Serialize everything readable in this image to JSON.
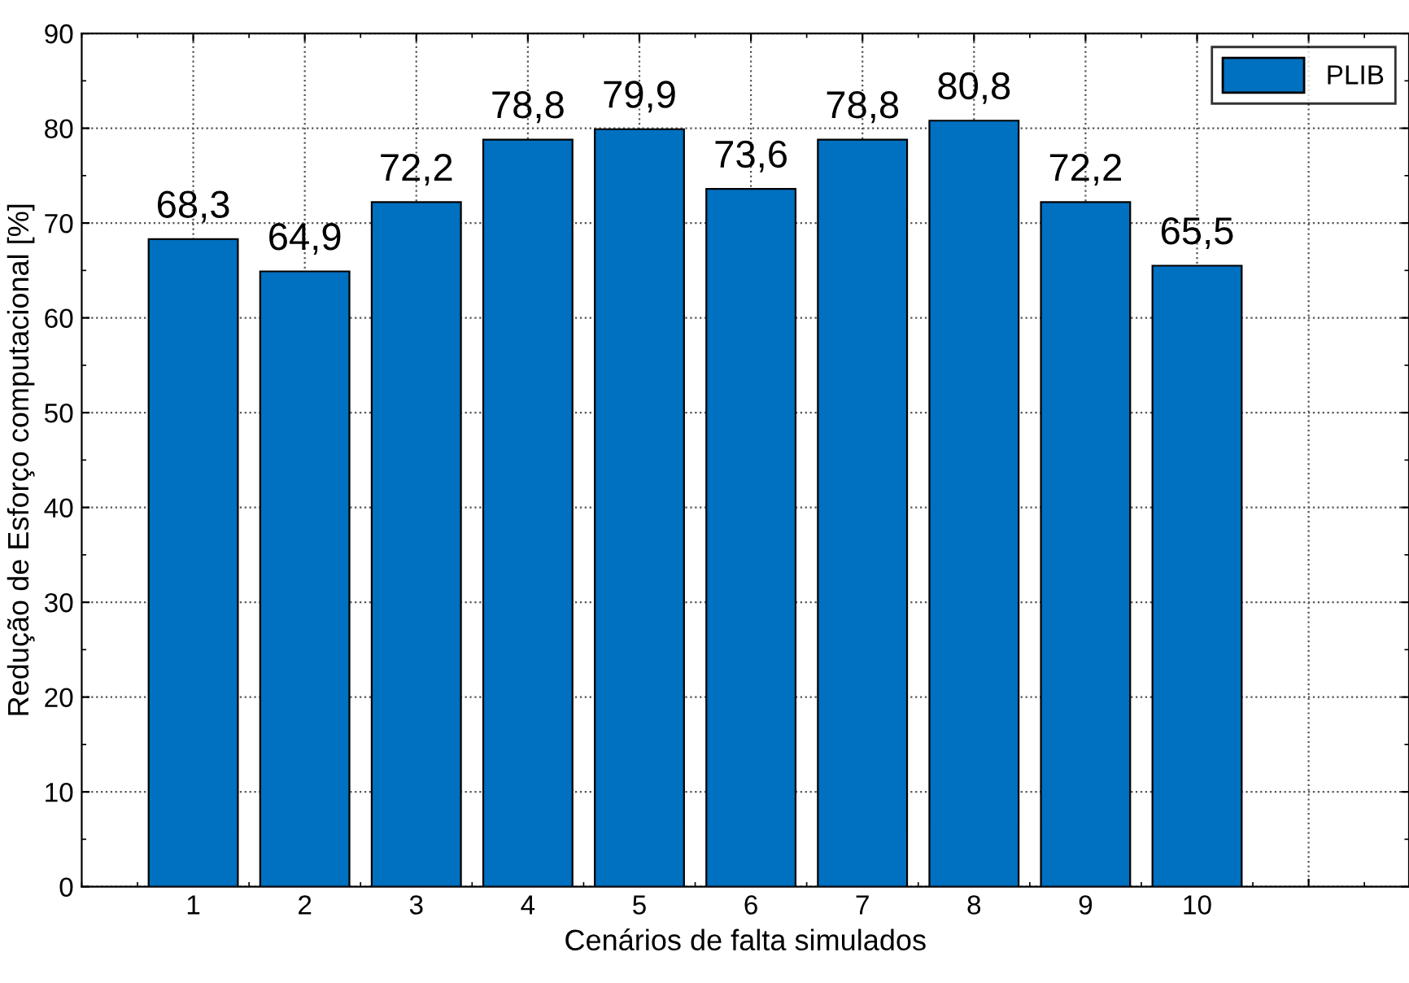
{
  "chart_data": {
    "type": "bar",
    "xlabel": "Cenários de falta simulados",
    "ylabel": "Redução de Esforço computacional [%]",
    "x": [
      1,
      2,
      3,
      4,
      5,
      6,
      7,
      8,
      9,
      10
    ],
    "series": [
      {
        "name": "PLIB",
        "color": "#0070c0",
        "values": [
          68.3,
          64.9,
          72.2,
          78.8,
          79.9,
          73.6,
          78.8,
          80.8,
          72.2,
          65.5
        ],
        "value_labels": [
          "68,3",
          "64,9",
          "72,2",
          "78,8",
          "79,9",
          "73,6",
          "78,8",
          "80,8",
          "72,2",
          "65,5"
        ]
      }
    ],
    "xlim": [
      0,
      11.9
    ],
    "xticks": [
      1,
      2,
      3,
      4,
      5,
      6,
      7,
      8,
      9,
      10,
      {
        "value": 11,
        "label": null
      }
    ],
    "ylim": [
      0,
      90
    ],
    "yticks": [
      0,
      10,
      20,
      30,
      40,
      50,
      60,
      70,
      80,
      90
    ],
    "grid": true,
    "legend": "top right"
  }
}
